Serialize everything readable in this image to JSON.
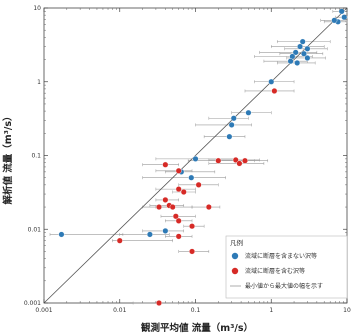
{
  "chart_data": {
    "type": "scatter",
    "title": "",
    "xlabel": "観測平均値 流量（m³/s）",
    "ylabel": "解析値 流量（m³/s）",
    "xscale": "log",
    "yscale": "log",
    "xlim": [
      0.001,
      10
    ],
    "ylim": [
      0.001,
      10
    ],
    "x_tick_labels": [
      "0.001",
      "0.01",
      "0.1",
      "1",
      "10"
    ],
    "y_tick_labels": [
      "0.001",
      "0.01",
      "0.1",
      "1",
      "10"
    ],
    "grid": false,
    "reference_line": "1:1",
    "legend_position": "bottom-right",
    "legend_title": "凡例",
    "series": [
      {
        "name": "流域に断層を含まない沢等",
        "color": "#2e7ab6",
        "points": [
          {
            "x": 8.5,
            "y": 9.0,
            "xmin": 6.5,
            "xmax": 10
          },
          {
            "x": 9.2,
            "y": 7.5,
            "xmin": 7.0,
            "xmax": 10
          },
          {
            "x": 7.6,
            "y": 6.5,
            "xmin": 5.0,
            "xmax": 10
          },
          {
            "x": 6.8,
            "y": 6.8,
            "xmin": 4.5,
            "xmax": 9.5
          },
          {
            "x": 2.6,
            "y": 3.5,
            "xmin": 1.2,
            "xmax": 6.0
          },
          {
            "x": 2.4,
            "y": 3.0,
            "xmin": 1.0,
            "xmax": 5.0
          },
          {
            "x": 3.0,
            "y": 2.8,
            "xmin": 1.5,
            "xmax": 5.5
          },
          {
            "x": 2.7,
            "y": 2.4,
            "xmin": 1.3,
            "xmax": 4.8
          },
          {
            "x": 3.0,
            "y": 2.1,
            "xmin": 1.6,
            "xmax": 5.2
          },
          {
            "x": 2.1,
            "y": 2.5,
            "xmin": 0.7,
            "xmax": 4.0
          },
          {
            "x": 1.9,
            "y": 2.2,
            "xmin": 0.6,
            "xmax": 3.5
          },
          {
            "x": 2.2,
            "y": 1.8,
            "xmin": 1.2,
            "xmax": 3.8
          },
          {
            "x": 1.8,
            "y": 1.9,
            "xmin": 0.8,
            "xmax": 3.0
          },
          {
            "x": 1.0,
            "y": 1.0,
            "xmin": 0.6,
            "xmax": 2.0
          },
          {
            "x": 0.5,
            "y": 0.38,
            "xmin": 0.3,
            "xmax": 1.0
          },
          {
            "x": 0.32,
            "y": 0.32,
            "xmin": 0.15,
            "xmax": 0.5
          },
          {
            "x": 0.3,
            "y": 0.26,
            "xmin": 0.1,
            "xmax": 0.55
          },
          {
            "x": 0.28,
            "y": 0.18,
            "xmin": 0.13,
            "xmax": 0.45
          },
          {
            "x": 0.1,
            "y": 0.09,
            "xmin": 0.03,
            "xmax": 0.35
          },
          {
            "x": 0.065,
            "y": 0.06,
            "xmin": 0.04,
            "xmax": 0.18
          },
          {
            "x": 0.088,
            "y": 0.05,
            "xmin": 0.02,
            "xmax": 0.25
          },
          {
            "x": 0.0017,
            "y": 0.0085,
            "xmin": 0.0012,
            "xmax": 0.011
          },
          {
            "x": 0.025,
            "y": 0.0085,
            "xmin": 0.01,
            "xmax": 0.045
          },
          {
            "x": 0.04,
            "y": 0.0095,
            "xmin": 0.02,
            "xmax": 0.07
          }
        ]
      },
      {
        "name": "流域に断層を含む沢等",
        "color": "#d62a26",
        "points": [
          {
            "x": 1.1,
            "y": 0.75,
            "xmin": 0.45,
            "xmax": 2.0
          },
          {
            "x": 0.34,
            "y": 0.087,
            "xmin": 0.15,
            "xmax": 0.7
          },
          {
            "x": 0.38,
            "y": 0.078,
            "xmin": 0.15,
            "xmax": 0.8
          },
          {
            "x": 0.45,
            "y": 0.085,
            "xmin": 0.2,
            "xmax": 0.9
          },
          {
            "x": 0.2,
            "y": 0.085,
            "xmin": 0.08,
            "xmax": 0.6
          },
          {
            "x": 0.04,
            "y": 0.075,
            "xmin": 0.02,
            "xmax": 0.06
          },
          {
            "x": 0.06,
            "y": 0.062,
            "xmin": 0.03,
            "xmax": 0.09
          },
          {
            "x": 0.11,
            "y": 0.04,
            "xmin": 0.06,
            "xmax": 0.2
          },
          {
            "x": 0.06,
            "y": 0.035,
            "xmin": 0.03,
            "xmax": 0.1
          },
          {
            "x": 0.07,
            "y": 0.032,
            "xmin": 0.05,
            "xmax": 0.1
          },
          {
            "x": 0.04,
            "y": 0.025,
            "xmin": 0.03,
            "xmax": 0.06
          },
          {
            "x": 0.045,
            "y": 0.021,
            "xmin": 0.025,
            "xmax": 0.07
          },
          {
            "x": 0.05,
            "y": 0.02,
            "xmin": 0.03,
            "xmax": 0.09
          },
          {
            "x": 0.033,
            "y": 0.02,
            "xmin": 0.02,
            "xmax": 0.05
          },
          {
            "x": 0.15,
            "y": 0.02,
            "xmin": 0.09,
            "xmax": 0.21
          },
          {
            "x": 0.055,
            "y": 0.015,
            "xmin": 0.035,
            "xmax": 0.1
          },
          {
            "x": 0.06,
            "y": 0.013,
            "xmin": 0.04,
            "xmax": 0.09
          },
          {
            "x": 0.09,
            "y": 0.011,
            "xmin": 0.07,
            "xmax": 0.13
          },
          {
            "x": 0.06,
            "y": 0.008,
            "xmin": 0.04,
            "xmax": 0.09
          },
          {
            "x": 0.01,
            "y": 0.007,
            "xmin": 0.008,
            "xmax": 0.05
          },
          {
            "x": 0.09,
            "y": 0.005,
            "xmin": 0.06,
            "xmax": 0.15
          },
          {
            "x": 0.033,
            "y": 0.001,
            "xmin": 0.015,
            "xmax": 0.06
          }
        ]
      }
    ],
    "legend_range_label": "最小値から最大値の幅を示す"
  }
}
